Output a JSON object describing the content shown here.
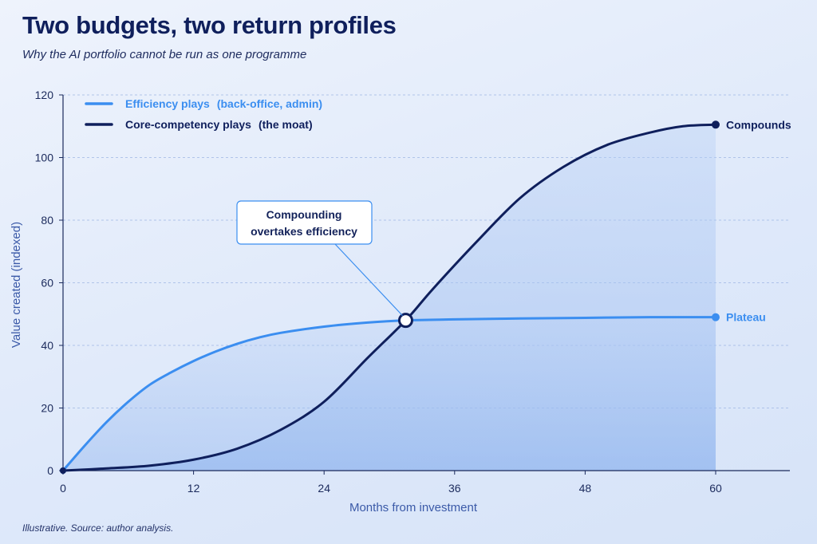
{
  "title": "Two budgets, two return profiles",
  "subtitle": "Why the AI portfolio cannot be run as one programme",
  "source": "Illustrative. Source: author analysis.",
  "colors": {
    "efficiency": "#3b8ef0",
    "core": "#0f1f5c",
    "fill": "#a9c5f2"
  },
  "chart_data": {
    "type": "line",
    "xlabel": "Months from investment",
    "ylabel": "Value created (indexed)",
    "xlim": [
      0,
      60
    ],
    "ylim": [
      0,
      120
    ],
    "x_ticks": [
      "0",
      "12",
      "24",
      "36",
      "48",
      "60"
    ],
    "y_ticks": [
      "0",
      "20",
      "40",
      "60",
      "80",
      "100",
      "120"
    ],
    "grid": true,
    "legend_position": "top-left",
    "legend": [
      {
        "label": "Efficiency plays",
        "note": "(back-office, admin)"
      },
      {
        "label": "Core-competency plays",
        "note": "(the moat)"
      }
    ],
    "series": [
      {
        "name": "Efficiency plays (back-office, admin)",
        "end_label": "Plateau",
        "x": [
          0,
          2,
          4,
          6,
          8,
          10,
          12,
          14,
          16,
          18,
          20,
          24,
          28,
          31.5,
          36,
          42,
          48,
          54,
          60
        ],
        "values": [
          0,
          8,
          15.5,
          22,
          27.5,
          31.5,
          35,
          38,
          40.5,
          42.5,
          44,
          46,
          47.3,
          48,
          48.3,
          48.6,
          48.8,
          49,
          49
        ]
      },
      {
        "name": "Core-competency plays (the moat)",
        "end_label": "Compounds",
        "x": [
          0,
          4,
          8,
          12,
          16,
          20,
          24,
          28,
          31.5,
          34,
          38,
          42,
          46,
          50,
          54,
          57,
          60
        ],
        "values": [
          0,
          0.7,
          1.6,
          3.5,
          7,
          13,
          22,
          36,
          48,
          58,
          73,
          87,
          97,
          104,
          108,
          110,
          110.5
        ]
      }
    ],
    "annotations": [
      {
        "text_line1": "Compounding",
        "text_line2": "overtakes efficiency",
        "x": 31.5,
        "y": 48
      }
    ]
  }
}
